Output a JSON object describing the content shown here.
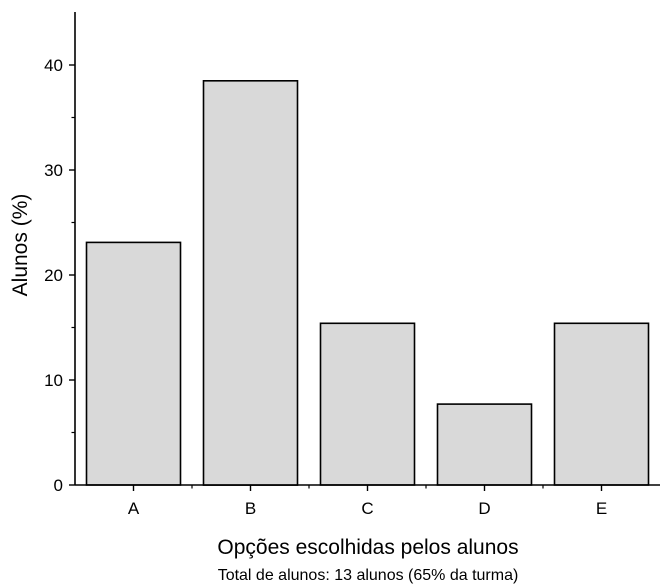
{
  "chart_data": {
    "type": "bar",
    "categories": [
      "A",
      "B",
      "C",
      "D",
      "E"
    ],
    "values": [
      23.1,
      38.5,
      15.4,
      7.7,
      15.4
    ],
    "xlabel": "Opções escolhidas pelos alunos",
    "ylabel": "Alunos (%)",
    "caption": "Total de alunos: 13 alunos (65% da turma)",
    "ylim": [
      0,
      45
    ],
    "yticks": [
      0,
      10,
      20,
      30,
      40
    ],
    "grid": false,
    "legend": "none",
    "bar_fill": "#d9d9d9",
    "bar_stroke": "#000000",
    "axis_color": "#000000"
  }
}
